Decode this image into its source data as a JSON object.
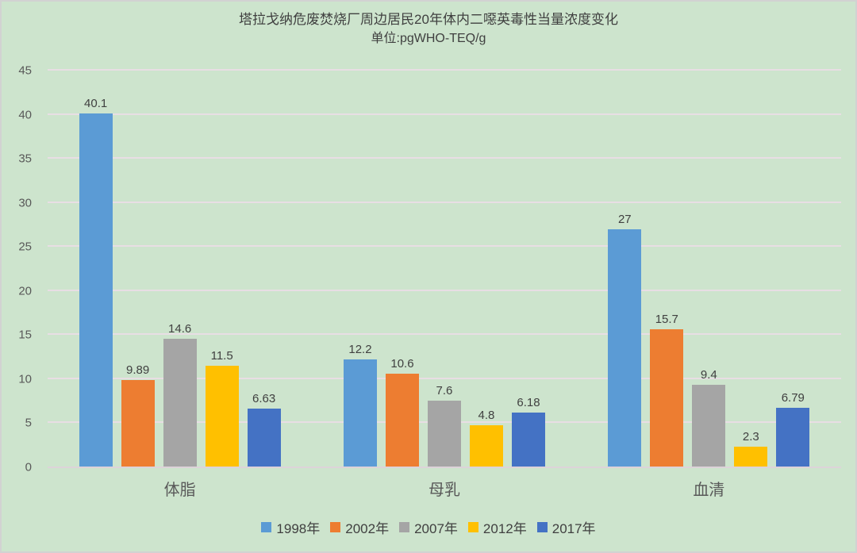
{
  "title": {
    "line1": "塔拉戈纳危废焚烧厂周边居民20年体内二噁英毒性当量浓度变化",
    "line2": "单位:pgWHO-TEQ/g"
  },
  "colors": {
    "background": "#cde4cd",
    "frame_border": "#d2d2d2",
    "gridline": "#e8dee4",
    "axis_line": "#ddd3d9",
    "title_text": "#404040",
    "tick_text": "#595959",
    "value_text": "#404040",
    "category_text": "#595959",
    "legend_text": "#404040"
  },
  "chart_data": {
    "type": "bar",
    "title": "塔拉戈纳危废焚烧厂周边居民20年体内二噁英毒性当量浓度变化",
    "subtitle": "单位:pgWHO-TEQ/g",
    "categories": [
      "体脂",
      "母乳",
      "血清"
    ],
    "series": [
      {
        "name": "1998年",
        "color": "#5b9bd5",
        "values": [
          40.1,
          12.2,
          27
        ]
      },
      {
        "name": "2002年",
        "color": "#ed7d31",
        "values": [
          9.89,
          10.6,
          15.7
        ]
      },
      {
        "name": "2007年",
        "color": "#a5a5a5",
        "values": [
          14.6,
          7.6,
          9.4
        ]
      },
      {
        "name": "2012年",
        "color": "#ffc000",
        "values": [
          11.5,
          4.8,
          2.3
        ]
      },
      {
        "name": "2017年",
        "color": "#4472c4",
        "values": [
          6.63,
          6.18,
          6.79
        ]
      }
    ],
    "ylim": [
      0,
      45
    ],
    "yticks": [
      0,
      5,
      10,
      15,
      20,
      25,
      30,
      35,
      40,
      45
    ],
    "grid": true,
    "legend_position": "bottom",
    "value_labels": true
  }
}
